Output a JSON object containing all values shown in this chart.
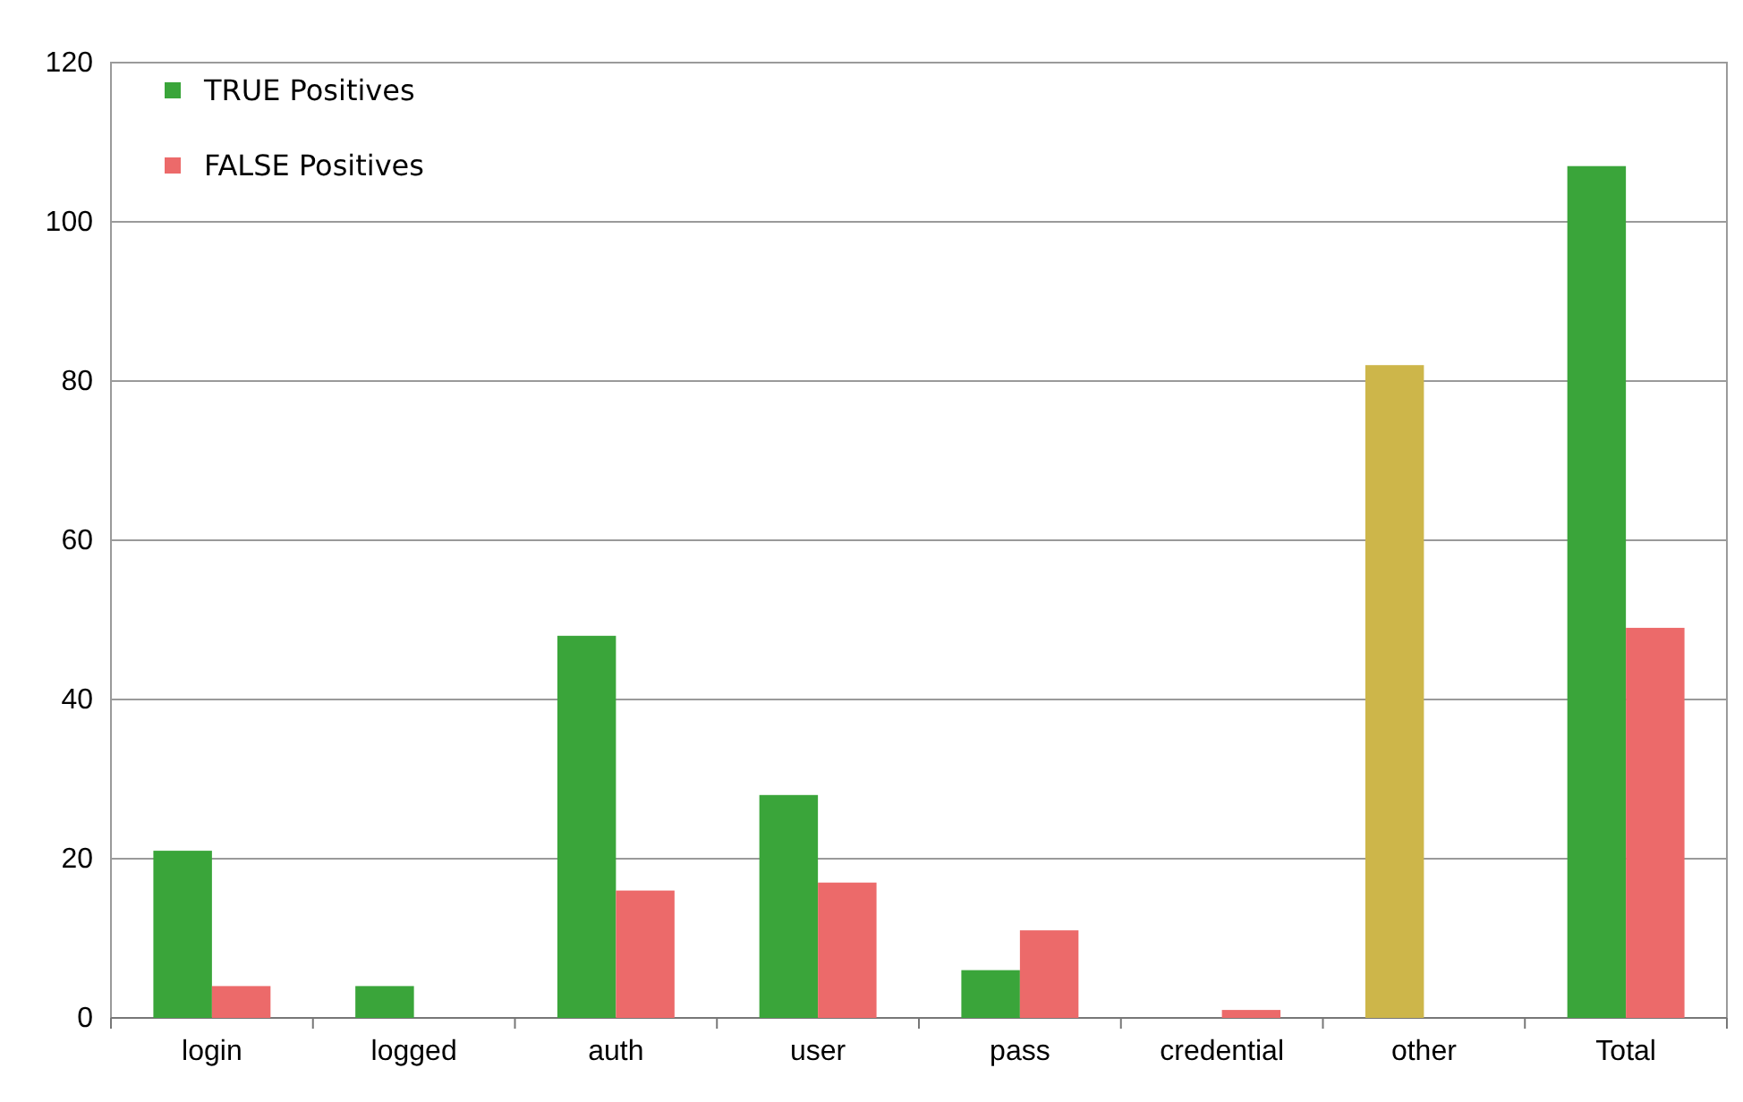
{
  "chart_data": {
    "type": "bar",
    "categories": [
      "login",
      "logged",
      "auth",
      "user",
      "pass",
      "credential",
      "other",
      "Total"
    ],
    "series": [
      {
        "name": "TRUE Positives",
        "color": "#3aa53a",
        "colors": [
          "#3aa53a",
          "#3aa53a",
          "#3aa53a",
          "#3aa53a",
          "#3aa53a",
          "#3aa53a",
          "#cdb64a",
          "#3aa53a"
        ],
        "values": [
          21,
          4,
          48,
          28,
          6,
          0,
          82,
          107
        ]
      },
      {
        "name": "FALSE Positives",
        "color": "#ec6a6a",
        "values": [
          4,
          0,
          16,
          17,
          11,
          1,
          0,
          49
        ]
      }
    ],
    "ylim": [
      0,
      120
    ],
    "yticks": [
      0,
      20,
      40,
      60,
      80,
      100,
      120
    ],
    "grid": "y",
    "legend": "top left"
  }
}
